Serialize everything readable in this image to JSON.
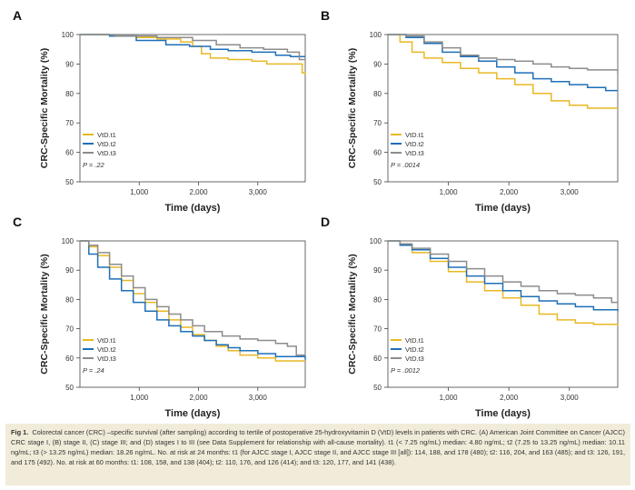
{
  "colors": {
    "t1": "#e9b823",
    "t2": "#1e6fb8",
    "t3": "#8c8c8c",
    "axis": "#444444"
  },
  "caption": {
    "label": "Fig 1.",
    "text": "Colorectal cancer (CRC) –specific survival (after sampling) according to tertile of postoperative 25-hydroxyvitamin D (VtD) levels in patients with CRC. (A) American Joint Committee on Cancer (AJCC) CRC stage I, (B) stage II, (C) stage III; and (D) stages I to III (see Data Supplement for relationship with all-cause mortality). t1 (< 7.25 ng/mL) median: 4.80 ng/mL; t2 (7.25 to 13.25 ng/mL) median: 10.11 ng/mL; t3 (> 13.25 ng/mL) median: 18.26 ng/mL. No. at risk at 24 months: t1 (for AJCC stage I, AJCC stage II, and AJCC stage III [all]): 114, 188, and 178 (480); t2: 116, 204, and 163 (485); and t3: 126, 191, and 175 (492). No. at risk at 60 months: t1: 108, 158, and 138 (404); t2: 110, 176, and 126 (414); and t3: 120, 177, and 141 (438)."
  },
  "chart_data": [
    {
      "panel": "A",
      "type": "line",
      "xlabel": "Time (days)",
      "ylabel": "CRC-Specific Mortality (%)",
      "xlim": [
        0,
        3800
      ],
      "ylim": [
        50,
        100
      ],
      "xticks": [
        "1,000",
        "2,000",
        "3,000"
      ],
      "yticks": [
        "50",
        "60",
        "70",
        "80",
        "90",
        "100"
      ],
      "legend_position": "bottom-left",
      "pvalue": "P = .22",
      "series": [
        {
          "name": "VtD.t1",
          "key": "t1",
          "x": [
            0,
            500,
            950,
            1300,
            1700,
            1900,
            2050,
            2200,
            2500,
            2900,
            3150,
            3500,
            3700,
            3750,
            3800
          ],
          "y": [
            100,
            99.5,
            99,
            98.5,
            97.5,
            96,
            93.5,
            92,
            91.5,
            91,
            90,
            90,
            90,
            87,
            86.5
          ]
        },
        {
          "name": "VtD.t2",
          "key": "t2",
          "x": [
            0,
            500,
            950,
            1450,
            1850,
            2200,
            2500,
            2900,
            3300,
            3550,
            3800
          ],
          "y": [
            100,
            99.5,
            98,
            96.5,
            96,
            95,
            94.5,
            94,
            93,
            92.5,
            92.5
          ]
        },
        {
          "name": "VtD.t3",
          "key": "t3",
          "x": [
            0,
            600,
            1300,
            1900,
            2300,
            2700,
            3100,
            3500,
            3700,
            3800
          ],
          "y": [
            100,
            99.5,
            99,
            98,
            96.5,
            95.5,
            95,
            94,
            91.5,
            91.5
          ]
        }
      ]
    },
    {
      "panel": "B",
      "type": "line",
      "xlabel": "Time (days)",
      "ylabel": "CRC-Specific Mortality (%)",
      "xlim": [
        0,
        3800
      ],
      "ylim": [
        50,
        100
      ],
      "xticks": [
        "1,000",
        "2,000",
        "3,000"
      ],
      "yticks": [
        "50",
        "60",
        "70",
        "80",
        "90",
        "100"
      ],
      "legend_position": "bottom-left",
      "pvalue": "P = .0014",
      "series": [
        {
          "name": "VtD.t1",
          "key": "t1",
          "x": [
            0,
            200,
            400,
            600,
            900,
            1200,
            1500,
            1800,
            2100,
            2400,
            2700,
            3000,
            3300,
            3800
          ],
          "y": [
            100,
            97.5,
            94,
            92,
            90.5,
            88.5,
            87,
            85,
            83,
            80,
            77.5,
            76,
            75,
            75
          ]
        },
        {
          "name": "VtD.t2",
          "key": "t2",
          "x": [
            0,
            300,
            600,
            900,
            1200,
            1500,
            1800,
            2100,
            2400,
            2700,
            3000,
            3300,
            3600,
            3800
          ],
          "y": [
            100,
            99,
            97,
            94,
            92.5,
            91,
            89,
            87,
            85,
            84,
            83,
            82,
            81,
            81
          ]
        },
        {
          "name": "VtD.t3",
          "key": "t3",
          "x": [
            0,
            300,
            600,
            900,
            1200,
            1500,
            1800,
            2100,
            2400,
            2700,
            3000,
            3300,
            3800
          ],
          "y": [
            100,
            99.5,
            97.5,
            95.5,
            93,
            92,
            91.5,
            91,
            90,
            89,
            88.5,
            88,
            87
          ]
        }
      ]
    },
    {
      "panel": "C",
      "type": "line",
      "xlabel": "Time (days)",
      "ylabel": "CRC-Specific Mortality (%)",
      "xlim": [
        0,
        3800
      ],
      "ylim": [
        50,
        100
      ],
      "xticks": [
        "1,000",
        "2,000",
        "3,000"
      ],
      "yticks": [
        "50",
        "60",
        "70",
        "80",
        "90",
        "100"
      ],
      "legend_position": "bottom-left",
      "pvalue": "P = .24",
      "series": [
        {
          "name": "VtD.t1",
          "key": "t1",
          "x": [
            0,
            150,
            300,
            500,
            700,
            900,
            1100,
            1300,
            1500,
            1700,
            1900,
            2100,
            2300,
            2500,
            2700,
            3000,
            3300,
            3800
          ],
          "y": [
            100,
            98,
            95,
            91,
            86.5,
            82,
            79,
            76,
            73,
            70.5,
            68,
            66,
            64,
            62.5,
            61,
            60,
            59,
            59
          ]
        },
        {
          "name": "VtD.t2",
          "key": "t2",
          "x": [
            0,
            150,
            300,
            500,
            700,
            900,
            1100,
            1300,
            1500,
            1700,
            1900,
            2100,
            2300,
            2500,
            2700,
            3000,
            3300,
            3800
          ],
          "y": [
            100,
            95.5,
            91,
            87,
            83,
            79,
            76,
            73,
            71,
            69,
            67.5,
            66,
            64.5,
            63.5,
            62.5,
            61.5,
            60.5,
            59.5
          ]
        },
        {
          "name": "VtD.t3",
          "key": "t3",
          "x": [
            0,
            150,
            300,
            500,
            700,
            900,
            1100,
            1300,
            1500,
            1700,
            1900,
            2100,
            2400,
            2700,
            3000,
            3300,
            3500,
            3650,
            3800
          ],
          "y": [
            100,
            98.5,
            96,
            92,
            88,
            84,
            80,
            77.5,
            75,
            73,
            71,
            69,
            67.5,
            66.5,
            66,
            65,
            64,
            61,
            61
          ]
        }
      ]
    },
    {
      "panel": "D",
      "type": "line",
      "xlabel": "Time (days)",
      "ylabel": "CRC-Specific Mortality (%)",
      "xlim": [
        0,
        3800
      ],
      "ylim": [
        50,
        100
      ],
      "xticks": [
        "1,000",
        "2,000",
        "3,000"
      ],
      "yticks": [
        "50",
        "60",
        "70",
        "80",
        "90",
        "100"
      ],
      "legend_position": "bottom-left",
      "pvalue": "P = .0012",
      "series": [
        {
          "name": "VtD.t1",
          "key": "t1",
          "x": [
            0,
            200,
            400,
            700,
            1000,
            1300,
            1600,
            1900,
            2200,
            2500,
            2800,
            3100,
            3400,
            3800
          ],
          "y": [
            100,
            98.5,
            96,
            93,
            89.5,
            86,
            83,
            80.5,
            78,
            75,
            73,
            72,
            71.5,
            71
          ]
        },
        {
          "name": "VtD.t2",
          "key": "t2",
          "x": [
            0,
            200,
            400,
            700,
            1000,
            1300,
            1600,
            1900,
            2200,
            2500,
            2800,
            3100,
            3400,
            3800
          ],
          "y": [
            100,
            98.5,
            97,
            94,
            91,
            88,
            85.5,
            83,
            81,
            79.5,
            78.5,
            77.5,
            76.5,
            76
          ]
        },
        {
          "name": "VtD.t3",
          "key": "t3",
          "x": [
            0,
            200,
            400,
            700,
            1000,
            1300,
            1600,
            1900,
            2200,
            2500,
            2800,
            3100,
            3400,
            3700,
            3800
          ],
          "y": [
            100,
            99,
            97.5,
            95.5,
            93,
            90.5,
            88,
            86,
            84.5,
            83,
            82,
            81.5,
            80.5,
            79,
            79
          ]
        }
      ]
    }
  ]
}
